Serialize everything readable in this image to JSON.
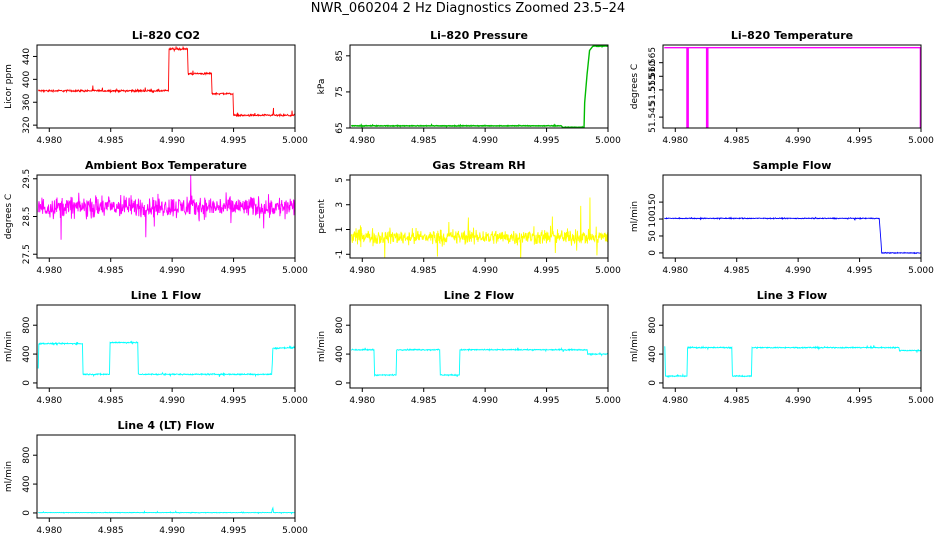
{
  "page": {
    "title": "NWR_060204  2 Hz Diagnostics Zoomed 23.5–24"
  },
  "chart_data": [
    {
      "type": "line",
      "title": "Li–820 CO2",
      "ylabel": "Licor ppm",
      "color": "#ff0000",
      "xlim": [
        4.979,
        5.0
      ],
      "ylim": [
        315,
        460
      ],
      "xticks": [
        "4.980",
        "4.985",
        "4.990",
        "4.995",
        "5.000"
      ],
      "yticks": [
        320,
        360,
        400,
        440
      ],
      "noise": 1.5,
      "series": [
        {
          "x": [
            4.9791,
            4.9897,
            4.98975,
            4.99125,
            4.9913,
            4.9932,
            4.99325,
            4.99495,
            4.995,
            4.9982,
            4.99825,
            4.99826,
            4.99835,
            4.9984,
            5.0
          ],
          "y": [
            380,
            380,
            453,
            453,
            410,
            410,
            375,
            375,
            337,
            337,
            350,
            340,
            337,
            337,
            337
          ]
        }
      ]
    },
    {
      "type": "line",
      "title": "Li–820 Pressure",
      "ylabel": "kPa",
      "color": "#00bb00",
      "xlim": [
        4.979,
        5.0
      ],
      "ylim": [
        65,
        88
      ],
      "xticks": [
        "4.980",
        "4.985",
        "4.990",
        "4.995",
        "5.000"
      ],
      "yticks": [
        65,
        75,
        85
      ],
      "noise": 0.08,
      "series": [
        {
          "x": [
            4.9791,
            4.9962,
            4.9963,
            4.99805,
            4.9981,
            4.9983,
            4.9985,
            4.99875,
            4.99885,
            5.0
          ],
          "y": [
            65.6,
            65.6,
            65.2,
            65.2,
            72,
            80,
            86.5,
            87.6,
            87.7,
            87.7
          ]
        }
      ]
    },
    {
      "type": "line",
      "title": "Li–820 Temperature",
      "ylabel": "degrees C",
      "color": "#ff00ff",
      "xlim": [
        4.979,
        5.0
      ],
      "ylim": [
        51.541,
        51.5715
      ],
      "xticks": [
        "4.980",
        "4.985",
        "4.990",
        "4.995",
        "5.000"
      ],
      "yticks": [
        51.545,
        51.555,
        51.56,
        51.565
      ],
      "ytick_labels": [
        "51.545",
        "51.555",
        "51.560",
        "51.565"
      ],
      "noise": 0,
      "series": [
        {
          "x": [
            4.9791,
            4.98095,
            4.98095,
            4.98105,
            4.98105,
            4.98255,
            4.98255,
            4.98265,
            4.98265,
            4.99995,
            4.99995,
            5.0
          ],
          "y": [
            51.5705,
            51.5705,
            51.541,
            51.541,
            51.5705,
            51.5705,
            51.541,
            51.541,
            51.5705,
            51.5705,
            51.541,
            51.541
          ]
        }
      ]
    },
    {
      "type": "line",
      "title": "Ambient Box Temperature",
      "ylabel": "degrees C",
      "color": "#ff00ff",
      "xlim": [
        4.979,
        5.0
      ],
      "ylim": [
        27.4,
        29.6
      ],
      "xticks": [
        "4.980",
        "4.985",
        "4.990",
        "4.995",
        "5.000"
      ],
      "yticks": [
        27.5,
        28.5,
        29.5
      ],
      "noise": 0.25,
      "series": [
        {
          "x": [
            4.9791,
            5.0
          ],
          "y": [
            28.75,
            28.75
          ]
        }
      ]
    },
    {
      "type": "line",
      "title": "Gas Stream RH",
      "ylabel": "percent",
      "color": "#ffff00",
      "xlim": [
        4.979,
        5.0
      ],
      "ylim": [
        -1.3,
        5.4
      ],
      "xticks": [
        "4.980",
        "4.985",
        "4.990",
        "4.995",
        "5.000"
      ],
      "yticks": [
        -1,
        1,
        3,
        5
      ],
      "noise": 0.55,
      "series": [
        {
          "x": [
            4.9791,
            5.0
          ],
          "y": [
            0.4,
            0.4
          ]
        }
      ]
    },
    {
      "type": "line",
      "title": "Sample Flow",
      "ylabel": "ml/min",
      "color": "#0000ff",
      "xlim": [
        4.979,
        5.0
      ],
      "ylim": [
        -15,
        230
      ],
      "xticks": [
        "4.980",
        "4.985",
        "4.990",
        "4.995",
        "5.000"
      ],
      "yticks": [
        0,
        50,
        100,
        150
      ],
      "noise": 1.2,
      "series": [
        {
          "x": [
            4.9791,
            4.9966,
            4.99675,
            4.9968,
            5.0
          ],
          "y": [
            102,
            102,
            30,
            0,
            0
          ]
        }
      ]
    },
    {
      "type": "line",
      "title": "Line 1 Flow",
      "ylabel": "ml/min",
      "color": "#00ffff",
      "xlim": [
        4.979,
        5.0
      ],
      "ylim": [
        -70,
        1080
      ],
      "xticks": [
        "4.980",
        "4.985",
        "4.990",
        "4.995",
        "5.000"
      ],
      "yticks": [
        0,
        400,
        800
      ],
      "noise": 8,
      "series": [
        {
          "x": [
            4.9791,
            4.97915,
            4.9792,
            4.9827,
            4.98275,
            4.9849,
            4.98495,
            4.9872,
            4.98725,
            4.9981,
            4.99815,
            4.9982,
            5.0
          ],
          "y": [
            200,
            540,
            545,
            545,
            120,
            120,
            560,
            560,
            120,
            120,
            270,
            480,
            490
          ]
        }
      ]
    },
    {
      "type": "line",
      "title": "Line 2 Flow",
      "ylabel": "ml/min",
      "color": "#00ffff",
      "xlim": [
        4.979,
        5.0
      ],
      "ylim": [
        -70,
        1080
      ],
      "xticks": [
        "4.980",
        "4.985",
        "4.990",
        "4.995",
        "5.000"
      ],
      "yticks": [
        0,
        400,
        800
      ],
      "noise": 7,
      "series": [
        {
          "x": [
            4.9791,
            4.98095,
            4.981,
            4.98275,
            4.9828,
            4.9863,
            4.98635,
            4.9879,
            4.98795,
            4.9983,
            4.99835,
            5.0
          ],
          "y": [
            460,
            460,
            110,
            110,
            460,
            460,
            110,
            110,
            460,
            460,
            400,
            400
          ]
        }
      ]
    },
    {
      "type": "line",
      "title": "Line 3 Flow",
      "ylabel": "ml/min",
      "color": "#00ffff",
      "xlim": [
        4.979,
        5.0
      ],
      "ylim": [
        -70,
        1080
      ],
      "xticks": [
        "4.980",
        "4.985",
        "4.990",
        "4.995",
        "5.000"
      ],
      "yticks": [
        0,
        400,
        800
      ],
      "noise": 7,
      "series": [
        {
          "x": [
            4.9791,
            4.97915,
            4.9792,
            4.98095,
            4.981,
            4.9828,
            4.98285,
            4.9846,
            4.98465,
            4.9862,
            4.98625,
            4.9982,
            4.99825,
            5.0
          ],
          "y": [
            500,
            500,
            95,
            95,
            490,
            490,
            490,
            490,
            95,
            95,
            490,
            490,
            450,
            450
          ]
        }
      ]
    },
    {
      "type": "line",
      "title": "Line 4 (LT) Flow",
      "ylabel": "ml/min",
      "color": "#00ffff",
      "xlim": [
        4.979,
        5.0
      ],
      "ylim": [
        -70,
        1080
      ],
      "xticks": [
        "4.980",
        "4.985",
        "4.990",
        "4.995",
        "5.000"
      ],
      "yticks": [
        0,
        400,
        800
      ],
      "noise": 3,
      "series": [
        {
          "x": [
            4.9791,
            4.9981,
            4.99815,
            4.9982,
            4.99825,
            5.0
          ],
          "y": [
            5,
            5,
            50,
            70,
            5,
            5
          ]
        }
      ]
    }
  ]
}
